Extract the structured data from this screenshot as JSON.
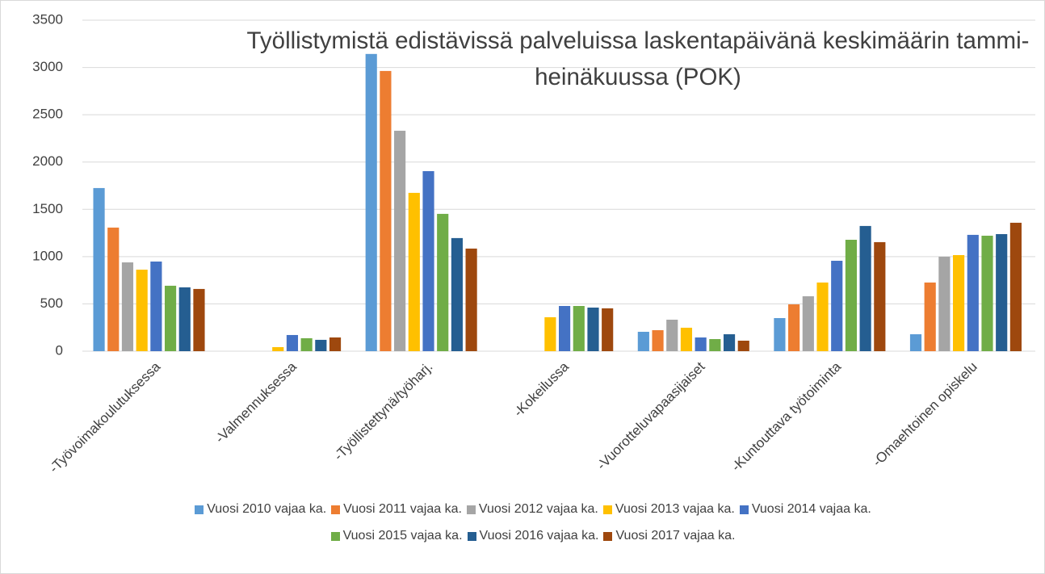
{
  "chart_data": {
    "type": "bar",
    "title": "Työllistymistä edistävissä palveluissa laskentapäivänä keskimäärin tammi-heinäkuussa (POK)",
    "categories": [
      "-Työvoimakoulutuksessa",
      "-Valmennuksessa",
      "-Työllistettynä/työharj.",
      "-Kokeilussa",
      "-Vuorotteluvapaasijaiset",
      "-Kuntouttava työtoiminta",
      "-Omaehtoinen opiskelu"
    ],
    "series": [
      {
        "name": "Vuosi 2010 vajaa ka.",
        "color": "#5b9bd5",
        "values": [
          1725,
          null,
          3143,
          null,
          205,
          350,
          179
        ]
      },
      {
        "name": "Vuosi 2011 vajaa ka.",
        "color": "#ed7d31",
        "values": [
          1307,
          null,
          2963,
          null,
          222,
          495,
          726
        ]
      },
      {
        "name": "Vuosi 2012 vajaa ka.",
        "color": "#a5a5a5",
        "values": [
          939,
          null,
          2331,
          null,
          333,
          581,
          999
        ]
      },
      {
        "name": "Vuosi 2013 vajaa ka.",
        "color": "#ffc000",
        "values": [
          862,
          43,
          1674,
          359,
          248,
          726,
          1016
        ]
      },
      {
        "name": "Vuosi 2014 vajaa ka.",
        "color": "#4472c4",
        "values": [
          948,
          171,
          1904,
          478,
          145,
          956,
          1230
        ]
      },
      {
        "name": "Vuosi 2015 vajaa ka.",
        "color": "#70ad47",
        "values": [
          692,
          137,
          1452,
          478,
          128,
          1178,
          1221
        ]
      },
      {
        "name": "Vuosi 2016 vajaa ka.",
        "color": "#255e91",
        "values": [
          675,
          120,
          1196,
          461,
          179,
          1324,
          1238
        ]
      },
      {
        "name": "Vuosi 2017 vajaa ka.",
        "color": "#9e480e",
        "values": [
          658,
          145,
          1085,
          453,
          111,
          1153,
          1358
        ]
      }
    ],
    "ylim": [
      0,
      3500
    ],
    "yticks": [
      0,
      500,
      1000,
      1500,
      2000,
      2500,
      3000,
      3500
    ],
    "grid": true
  }
}
